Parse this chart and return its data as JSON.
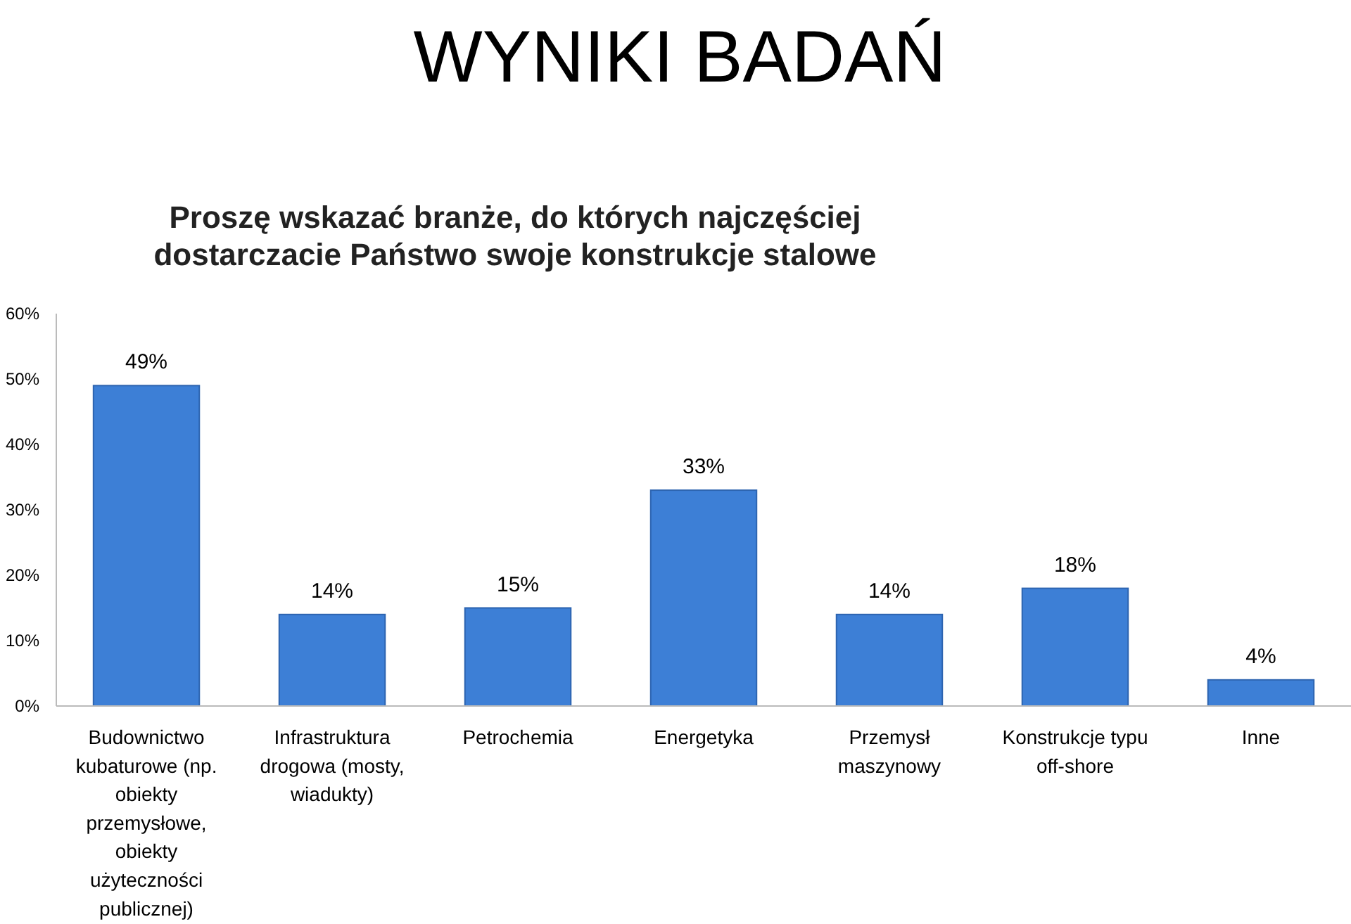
{
  "chart_data": {
    "type": "bar",
    "title": "WYNIKI BADAŃ",
    "subtitle": "Proszę wskazać branże, do których najczęściej dostarczacie Państwo swoje konstrukcje stalowe",
    "categories": [
      "Budownictwo kubaturowe (np. obiekty przemysłowe, obiekty użyteczności publicznej)",
      "Infrastruktura drogowa (mosty, wiadukty)",
      "Petrochemia",
      "Energetyka",
      "Przemysł maszynowy",
      "Konstrukcje typu off-shore",
      "Inne"
    ],
    "values": [
      49,
      14,
      15,
      33,
      14,
      18,
      4
    ],
    "value_labels": [
      "49%",
      "14%",
      "15%",
      "33%",
      "14%",
      "18%",
      "4%"
    ],
    "color": "#3d7fd6",
    "ylim": [
      0,
      60
    ],
    "yticks": [
      {
        "value": 0,
        "label": "0%"
      },
      {
        "value": 10,
        "label": "10%"
      },
      {
        "value": 20,
        "label": "20%"
      },
      {
        "value": 30,
        "label": "30%"
      },
      {
        "value": 40,
        "label": "40%"
      },
      {
        "value": 50,
        "label": "50%"
      },
      {
        "value": 60,
        "label": "60%"
      }
    ],
    "grid": false
  }
}
